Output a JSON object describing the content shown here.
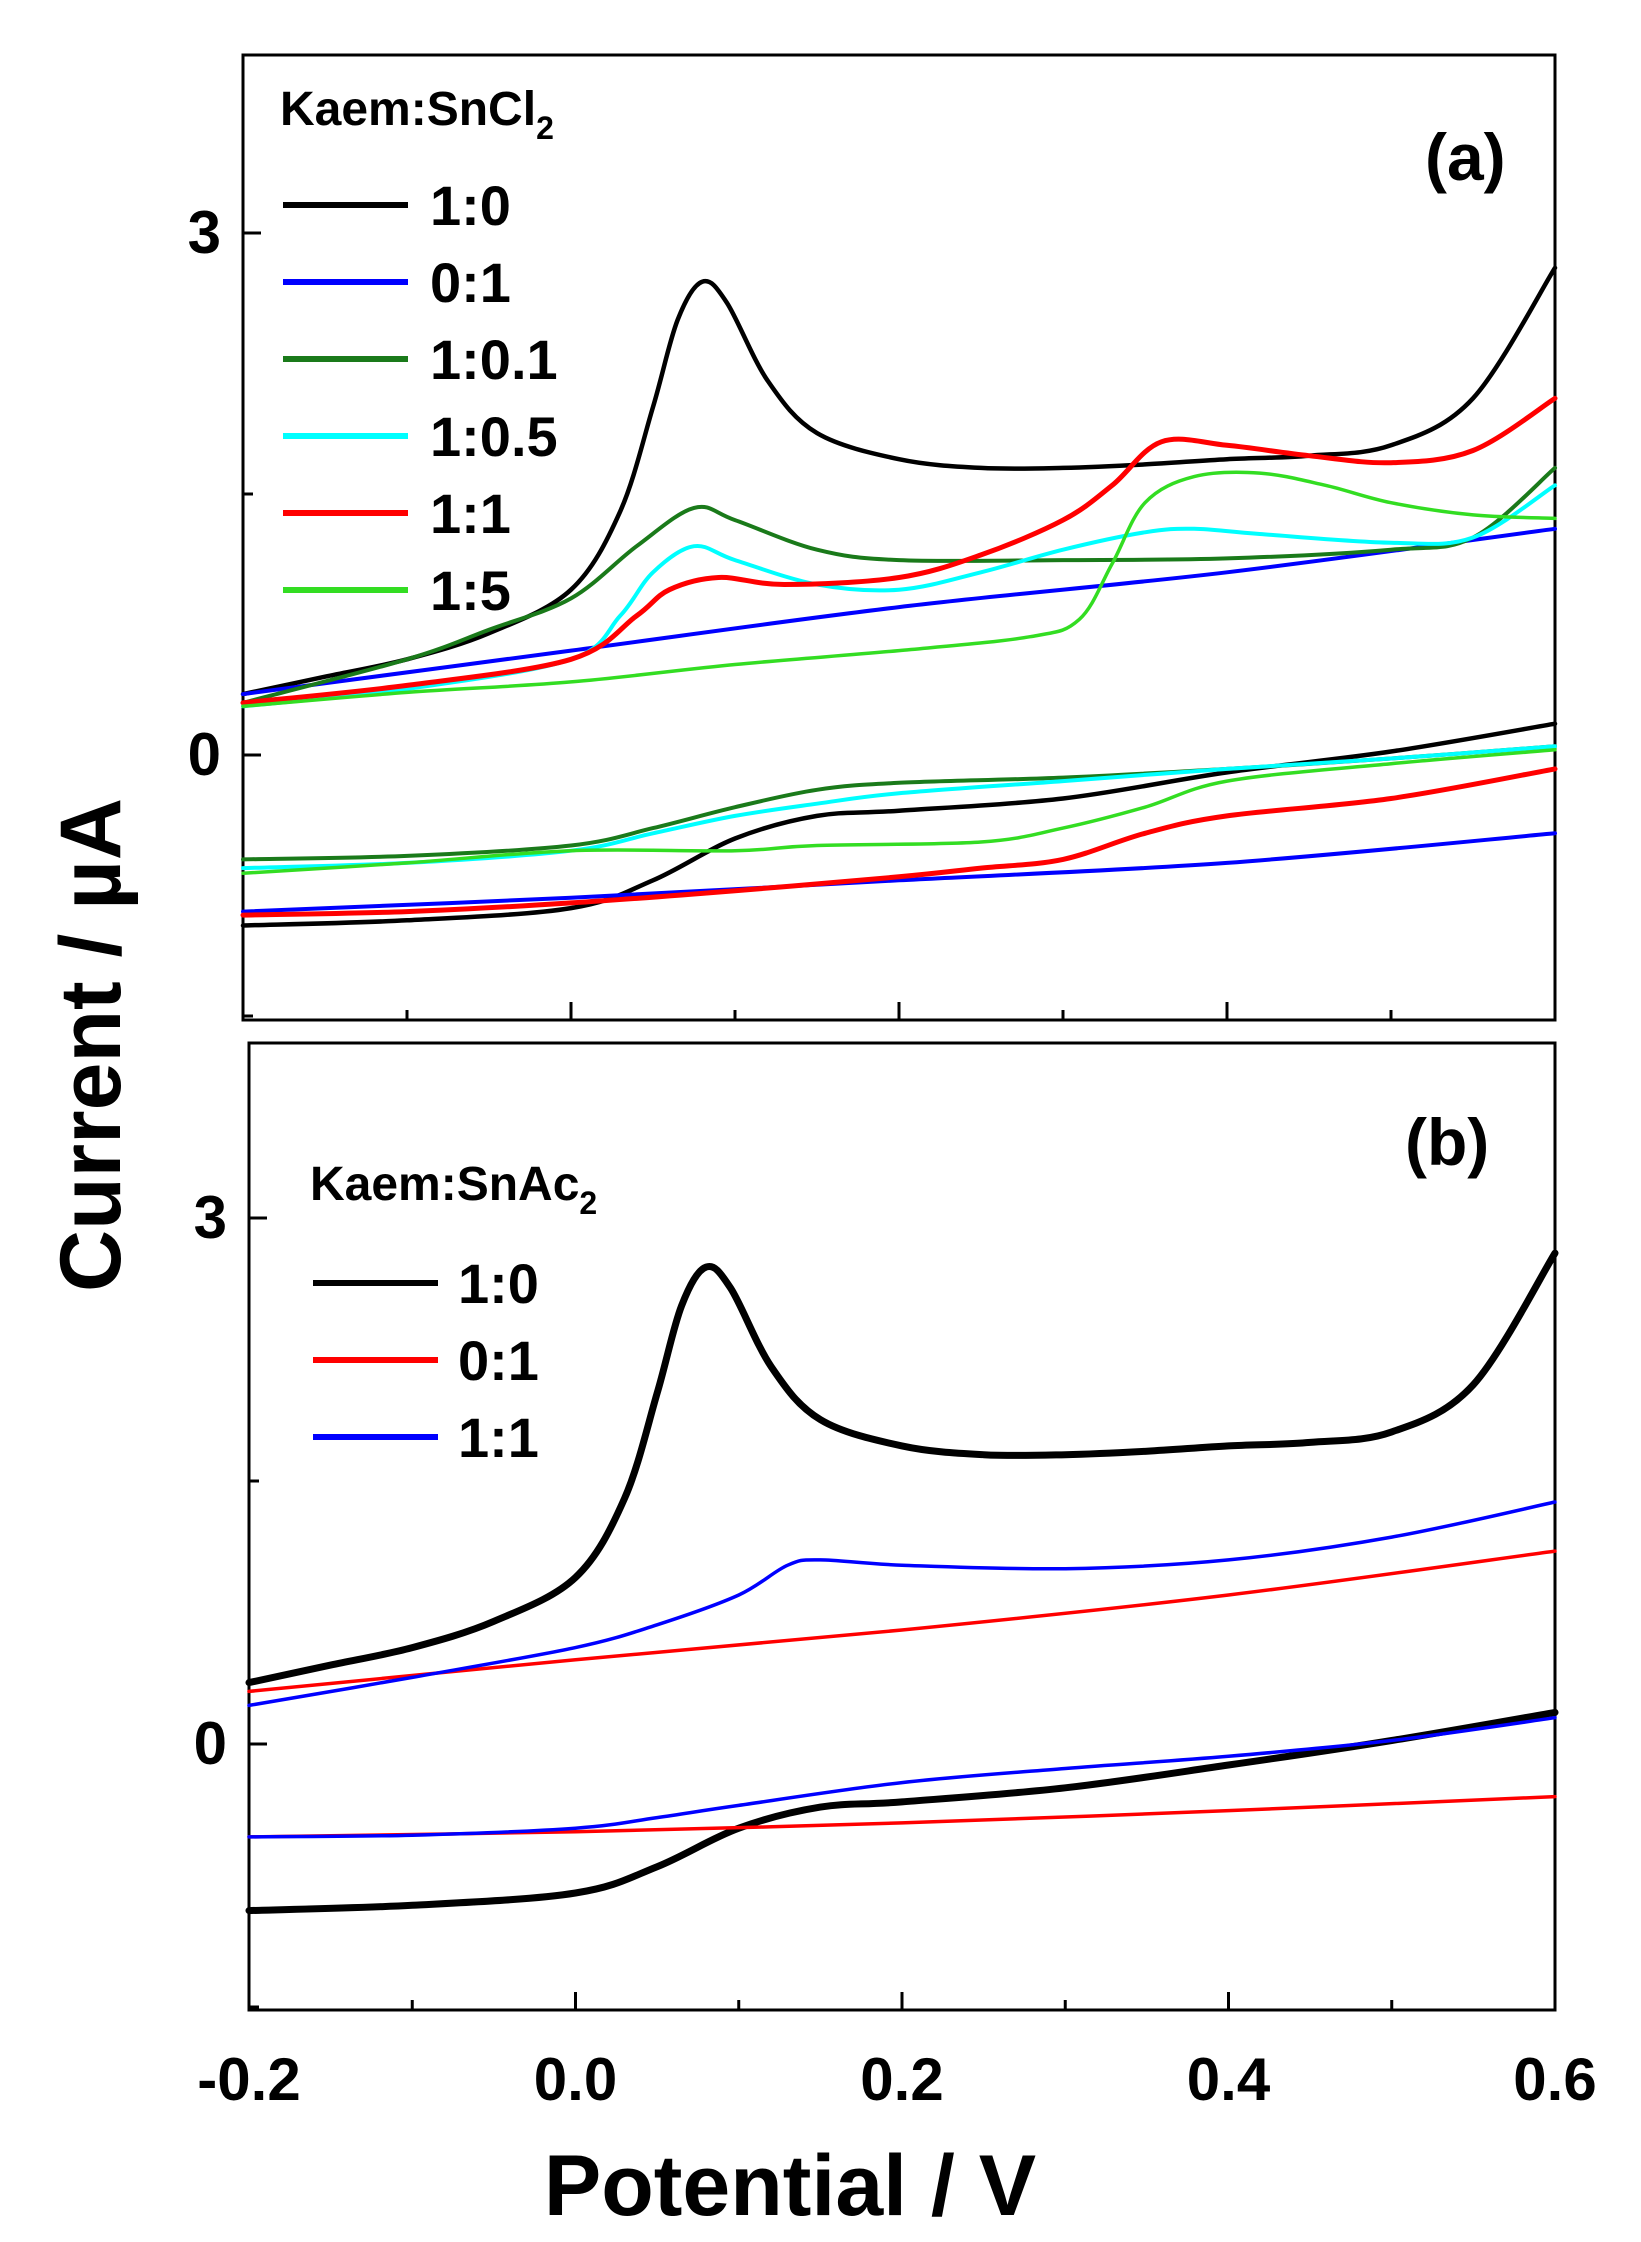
{
  "chart_data": [
    {
      "type": "line",
      "panel_label": "(a)",
      "legend_title": "Kaem:SnCl",
      "legend_title_subscript": "2",
      "legend_position": "top-left",
      "xlabel": "Potential  / V",
      "ylabel": "Current / µA",
      "xlim": [
        -0.2,
        0.6
      ],
      "ylim": [
        -1.5,
        4.0
      ],
      "y_ticks": [
        0,
        3
      ],
      "y_tick_labels": [
        "0",
        "3"
      ],
      "series": [
        {
          "name": "1:0",
          "color": "#000000",
          "forward": [
            [
              -0.2,
              0.35
            ],
            [
              -0.15,
              0.45
            ],
            [
              -0.1,
              0.55
            ],
            [
              -0.05,
              0.7
            ],
            [
              0.0,
              0.95
            ],
            [
              0.03,
              1.4
            ],
            [
              0.05,
              2.0
            ],
            [
              0.065,
              2.5
            ],
            [
              0.08,
              2.72
            ],
            [
              0.095,
              2.6
            ],
            [
              0.12,
              2.15
            ],
            [
              0.15,
              1.85
            ],
            [
              0.2,
              1.7
            ],
            [
              0.25,
              1.65
            ],
            [
              0.3,
              1.65
            ],
            [
              0.35,
              1.67
            ],
            [
              0.4,
              1.7
            ],
            [
              0.45,
              1.72
            ],
            [
              0.5,
              1.78
            ],
            [
              0.55,
              2.05
            ],
            [
              0.6,
              2.8
            ]
          ],
          "reverse": [
            [
              0.6,
              0.18
            ],
            [
              0.5,
              0.02
            ],
            [
              0.4,
              -0.1
            ],
            [
              0.3,
              -0.25
            ],
            [
              0.2,
              -0.32
            ],
            [
              0.15,
              -0.35
            ],
            [
              0.1,
              -0.48
            ],
            [
              0.05,
              -0.72
            ],
            [
              0.0,
              -0.88
            ],
            [
              -0.1,
              -0.95
            ],
            [
              -0.2,
              -0.98
            ]
          ]
        },
        {
          "name": "0:1",
          "color": "#0000ff",
          "forward": [
            [
              -0.2,
              0.35
            ],
            [
              0.0,
              0.6
            ],
            [
              0.2,
              0.85
            ],
            [
              0.4,
              1.05
            ],
            [
              0.6,
              1.3
            ]
          ],
          "reverse": [
            [
              0.6,
              -0.45
            ],
            [
              0.4,
              -0.62
            ],
            [
              0.2,
              -0.72
            ],
            [
              0.0,
              -0.82
            ],
            [
              -0.2,
              -0.9
            ]
          ]
        },
        {
          "name": "1:0.1",
          "color": "#1a7a1a",
          "forward": [
            [
              -0.2,
              0.3
            ],
            [
              -0.1,
              0.55
            ],
            [
              -0.05,
              0.72
            ],
            [
              0.0,
              0.9
            ],
            [
              0.04,
              1.2
            ],
            [
              0.075,
              1.42
            ],
            [
              0.1,
              1.35
            ],
            [
              0.15,
              1.18
            ],
            [
              0.2,
              1.12
            ],
            [
              0.3,
              1.12
            ],
            [
              0.4,
              1.13
            ],
            [
              0.5,
              1.18
            ],
            [
              0.55,
              1.25
            ],
            [
              0.6,
              1.65
            ]
          ],
          "reverse": [
            [
              0.6,
              0.05
            ],
            [
              0.5,
              -0.02
            ],
            [
              0.4,
              -0.08
            ],
            [
              0.3,
              -0.13
            ],
            [
              0.2,
              -0.16
            ],
            [
              0.15,
              -0.2
            ],
            [
              0.1,
              -0.3
            ],
            [
              0.05,
              -0.42
            ],
            [
              0.0,
              -0.52
            ],
            [
              -0.1,
              -0.58
            ],
            [
              -0.2,
              -0.6
            ]
          ]
        },
        {
          "name": "1:0.5",
          "color": "#00ffff",
          "forward": [
            [
              -0.2,
              0.28
            ],
            [
              -0.1,
              0.38
            ],
            [
              0.0,
              0.55
            ],
            [
              0.03,
              0.8
            ],
            [
              0.05,
              1.05
            ],
            [
              0.075,
              1.2
            ],
            [
              0.1,
              1.12
            ],
            [
              0.15,
              0.98
            ],
            [
              0.2,
              0.95
            ],
            [
              0.25,
              1.05
            ],
            [
              0.3,
              1.18
            ],
            [
              0.35,
              1.28
            ],
            [
              0.38,
              1.3
            ],
            [
              0.42,
              1.27
            ],
            [
              0.5,
              1.22
            ],
            [
              0.55,
              1.25
            ],
            [
              0.6,
              1.55
            ]
          ],
          "reverse": [
            [
              0.6,
              0.05
            ],
            [
              0.5,
              -0.02
            ],
            [
              0.4,
              -0.08
            ],
            [
              0.3,
              -0.15
            ],
            [
              0.2,
              -0.22
            ],
            [
              0.15,
              -0.28
            ],
            [
              0.1,
              -0.35
            ],
            [
              0.05,
              -0.45
            ],
            [
              0.0,
              -0.55
            ],
            [
              -0.1,
              -0.62
            ],
            [
              -0.2,
              -0.65
            ]
          ]
        },
        {
          "name": "1:1",
          "color": "#ff0000",
          "forward": [
            [
              -0.2,
              0.3
            ],
            [
              -0.1,
              0.4
            ],
            [
              0.0,
              0.55
            ],
            [
              0.04,
              0.8
            ],
            [
              0.06,
              0.95
            ],
            [
              0.09,
              1.02
            ],
            [
              0.13,
              0.98
            ],
            [
              0.2,
              1.02
            ],
            [
              0.25,
              1.15
            ],
            [
              0.3,
              1.35
            ],
            [
              0.33,
              1.55
            ],
            [
              0.36,
              1.8
            ],
            [
              0.4,
              1.78
            ],
            [
              0.45,
              1.72
            ],
            [
              0.5,
              1.68
            ],
            [
              0.55,
              1.75
            ],
            [
              0.6,
              2.05
            ]
          ],
          "reverse": [
            [
              0.6,
              -0.08
            ],
            [
              0.5,
              -0.25
            ],
            [
              0.4,
              -0.35
            ],
            [
              0.35,
              -0.45
            ],
            [
              0.3,
              -0.6
            ],
            [
              0.25,
              -0.65
            ],
            [
              0.2,
              -0.7
            ],
            [
              0.1,
              -0.78
            ],
            [
              0.0,
              -0.85
            ],
            [
              -0.1,
              -0.9
            ],
            [
              -0.2,
              -0.92
            ]
          ]
        },
        {
          "name": "1:5",
          "color": "#33dd22",
          "forward": [
            [
              -0.2,
              0.28
            ],
            [
              -0.1,
              0.36
            ],
            [
              0.0,
              0.42
            ],
            [
              0.1,
              0.52
            ],
            [
              0.2,
              0.6
            ],
            [
              0.28,
              0.68
            ],
            [
              0.31,
              0.78
            ],
            [
              0.33,
              1.1
            ],
            [
              0.35,
              1.45
            ],
            [
              0.38,
              1.6
            ],
            [
              0.42,
              1.62
            ],
            [
              0.46,
              1.55
            ],
            [
              0.5,
              1.45
            ],
            [
              0.55,
              1.38
            ],
            [
              0.6,
              1.36
            ]
          ],
          "reverse": [
            [
              0.6,
              0.03
            ],
            [
              0.5,
              -0.05
            ],
            [
              0.4,
              -0.15
            ],
            [
              0.35,
              -0.3
            ],
            [
              0.3,
              -0.42
            ],
            [
              0.25,
              -0.5
            ],
            [
              0.15,
              -0.52
            ],
            [
              0.1,
              -0.55
            ],
            [
              0.0,
              -0.55
            ],
            [
              -0.1,
              -0.62
            ],
            [
              -0.2,
              -0.68
            ]
          ]
        }
      ]
    },
    {
      "type": "line",
      "panel_label": "(b)",
      "legend_title": "Kaem:SnAc",
      "legend_title_subscript": "2",
      "legend_position": "top-left",
      "xlabel": "Potential  / V",
      "ylabel": "Current / µA",
      "xlim": [
        -0.2,
        0.6
      ],
      "ylim": [
        -1.5,
        4.0
      ],
      "x_ticks": [
        -0.2,
        0.0,
        0.2,
        0.4,
        0.6
      ],
      "x_tick_labels": [
        "-0.2",
        "0.0",
        "0.2",
        "0.4",
        "0.6"
      ],
      "y_ticks": [
        0,
        3
      ],
      "y_tick_labels": [
        "0",
        "3"
      ],
      "series": [
        {
          "name": "1:0",
          "color": "#000000",
          "forward": [
            [
              -0.2,
              0.35
            ],
            [
              -0.15,
              0.45
            ],
            [
              -0.1,
              0.55
            ],
            [
              -0.05,
              0.7
            ],
            [
              0.0,
              0.95
            ],
            [
              0.03,
              1.4
            ],
            [
              0.05,
              2.0
            ],
            [
              0.065,
              2.5
            ],
            [
              0.08,
              2.72
            ],
            [
              0.095,
              2.6
            ],
            [
              0.12,
              2.15
            ],
            [
              0.15,
              1.85
            ],
            [
              0.2,
              1.7
            ],
            [
              0.25,
              1.65
            ],
            [
              0.3,
              1.65
            ],
            [
              0.35,
              1.67
            ],
            [
              0.4,
              1.7
            ],
            [
              0.45,
              1.72
            ],
            [
              0.5,
              1.78
            ],
            [
              0.55,
              2.05
            ],
            [
              0.6,
              2.8
            ]
          ],
          "reverse": [
            [
              0.6,
              0.18
            ],
            [
              0.5,
              0.02
            ],
            [
              0.4,
              -0.12
            ],
            [
              0.3,
              -0.25
            ],
            [
              0.2,
              -0.33
            ],
            [
              0.15,
              -0.36
            ],
            [
              0.1,
              -0.48
            ],
            [
              0.05,
              -0.7
            ],
            [
              0.0,
              -0.85
            ],
            [
              -0.1,
              -0.92
            ],
            [
              -0.2,
              -0.95
            ]
          ]
        },
        {
          "name": "0:1",
          "color": "#ff0000",
          "forward": [
            [
              -0.2,
              0.3
            ],
            [
              0.0,
              0.48
            ],
            [
              0.2,
              0.65
            ],
            [
              0.4,
              0.85
            ],
            [
              0.6,
              1.1
            ]
          ],
          "reverse": [
            [
              0.6,
              -0.3
            ],
            [
              0.4,
              -0.38
            ],
            [
              0.2,
              -0.45
            ],
            [
              0.0,
              -0.5
            ],
            [
              -0.2,
              -0.53
            ]
          ]
        },
        {
          "name": "1:1",
          "color": "#0000ff",
          "forward": [
            [
              -0.2,
              0.22
            ],
            [
              -0.1,
              0.38
            ],
            [
              0.0,
              0.55
            ],
            [
              0.05,
              0.68
            ],
            [
              0.1,
              0.85
            ],
            [
              0.13,
              1.02
            ],
            [
              0.15,
              1.05
            ],
            [
              0.2,
              1.02
            ],
            [
              0.3,
              1.0
            ],
            [
              0.4,
              1.05
            ],
            [
              0.5,
              1.18
            ],
            [
              0.6,
              1.38
            ]
          ],
          "reverse": [
            [
              0.6,
              0.15
            ],
            [
              0.5,
              0.02
            ],
            [
              0.4,
              -0.07
            ],
            [
              0.3,
              -0.14
            ],
            [
              0.2,
              -0.22
            ],
            [
              0.1,
              -0.35
            ],
            [
              0.05,
              -0.42
            ],
            [
              0.0,
              -0.48
            ],
            [
              -0.1,
              -0.52
            ],
            [
              -0.2,
              -0.53
            ]
          ]
        }
      ]
    }
  ]
}
